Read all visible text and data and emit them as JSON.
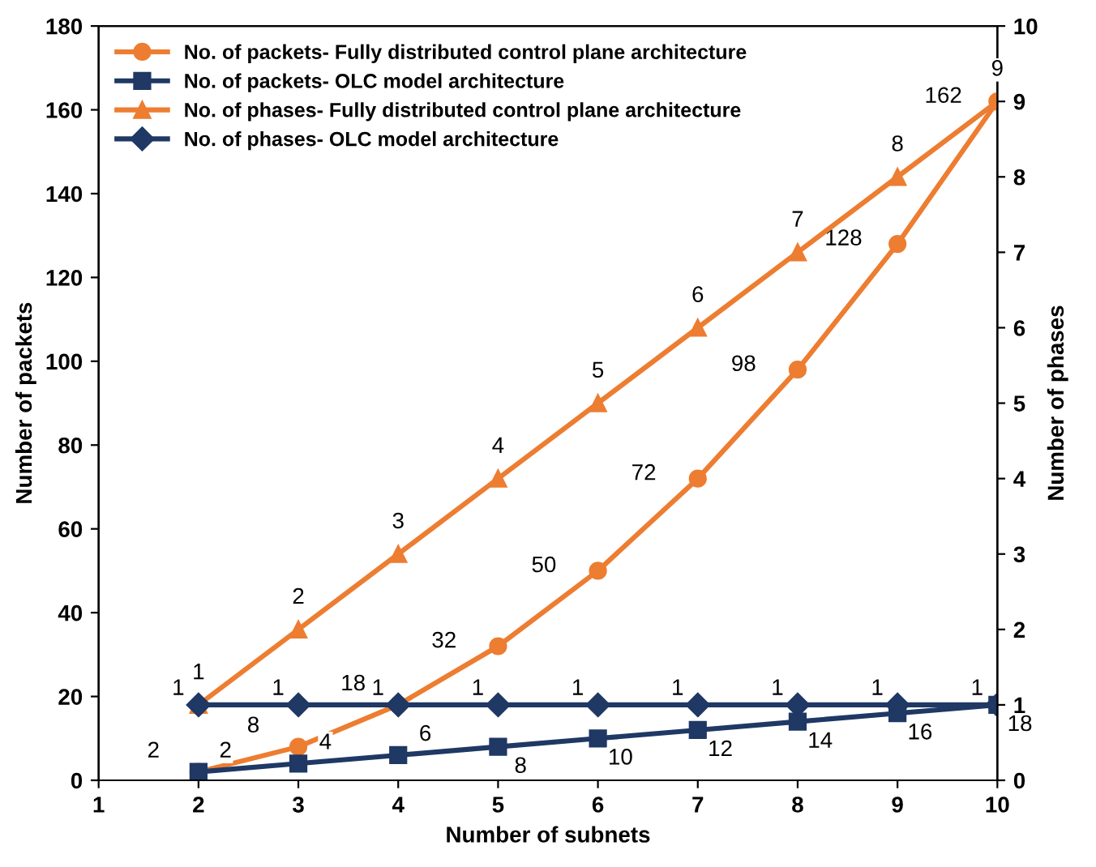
{
  "chart_data": {
    "type": "line",
    "xlabel": "Number of subnets",
    "ylabel": "Number of packets",
    "y2label": "Number of phases",
    "x": [
      2,
      3,
      4,
      5,
      6,
      7,
      8,
      9,
      10
    ],
    "xlim": [
      1,
      10
    ],
    "xticks": [
      1,
      2,
      3,
      4,
      5,
      6,
      7,
      8,
      9,
      10
    ],
    "ylim": [
      0,
      180
    ],
    "yticks": [
      0,
      20,
      40,
      60,
      80,
      100,
      120,
      140,
      160,
      180
    ],
    "y2lim": [
      0,
      10
    ],
    "y2ticks": [
      0,
      1,
      2,
      3,
      4,
      5,
      6,
      7,
      8,
      9,
      10
    ],
    "grid": false,
    "legend": "top left",
    "data_labels": true,
    "line_style": "solid",
    "series": [
      {
        "name": "No. of packets- Fully distributed control plane architecture",
        "color": "#ed7d31",
        "marker": "circle",
        "values": [
          2,
          8,
          18,
          32,
          50,
          72,
          98,
          128,
          162
        ]
      },
      {
        "name": "No. of packets- OLC model architecture",
        "color": "#1f3864",
        "marker": "square",
        "values": [
          2,
          4,
          6,
          8,
          10,
          12,
          14,
          16,
          18
        ]
      },
      {
        "name": "No. of phases- Fully distributed control plane architecture",
        "color": "#ed7d31",
        "marker": "triangle",
        "axis": "y2",
        "values": [
          1,
          2,
          3,
          4,
          5,
          6,
          7,
          8,
          9
        ]
      },
      {
        "name": "No. of phases- OLC model architecture",
        "color": "#1f3864",
        "marker": "diamond",
        "axis": "y2",
        "values": [
          1,
          1,
          1,
          1,
          1,
          1,
          1,
          1,
          1
        ]
      }
    ]
  }
}
